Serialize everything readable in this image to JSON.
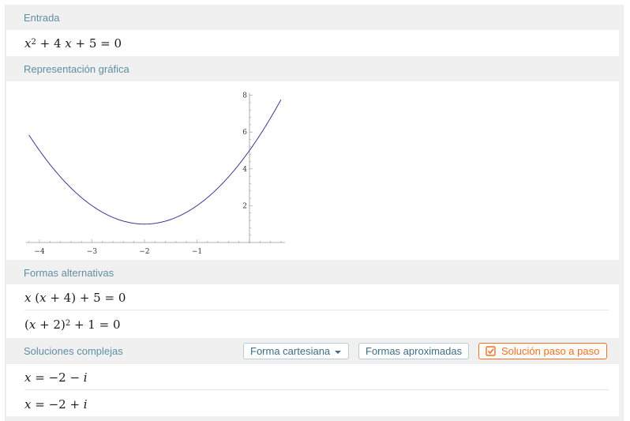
{
  "sections": {
    "input": {
      "title": "Entrada"
    },
    "plot": {
      "title": "Representación gráfica"
    },
    "alt_forms": {
      "title": "Formas alternativas"
    },
    "complex": {
      "title": "Soluciones complejas"
    }
  },
  "buttons": {
    "cartesian": "Forma cartesiana",
    "approx": "Formas aproximadas",
    "step": "Solución paso a paso"
  },
  "chart_data": {
    "type": "line",
    "series": [
      {
        "expression": "x^2 + 4 x + 5",
        "color": "#39398f"
      }
    ],
    "x_range": [
      -4.2,
      0.6
    ],
    "ylim": [
      0,
      8
    ],
    "x_ticks": [
      -4,
      -3,
      -2,
      -1
    ],
    "x_tick_labels": [
      "−4",
      "−3",
      "−2",
      "−1"
    ],
    "y_ticks": [
      2,
      4,
      6,
      8
    ],
    "y_tick_labels": [
      "2",
      "4",
      "6",
      "8"
    ],
    "x": [
      -4.2,
      -4,
      -3.5,
      -3,
      -2.5,
      -2,
      -1.5,
      -1,
      -0.5,
      0,
      0.5,
      0.6
    ],
    "y": [
      5.84,
      5,
      3.25,
      2,
      1.25,
      1,
      1.25,
      2,
      3.25,
      5,
      7.25,
      7.76
    ],
    "grid": false
  }
}
